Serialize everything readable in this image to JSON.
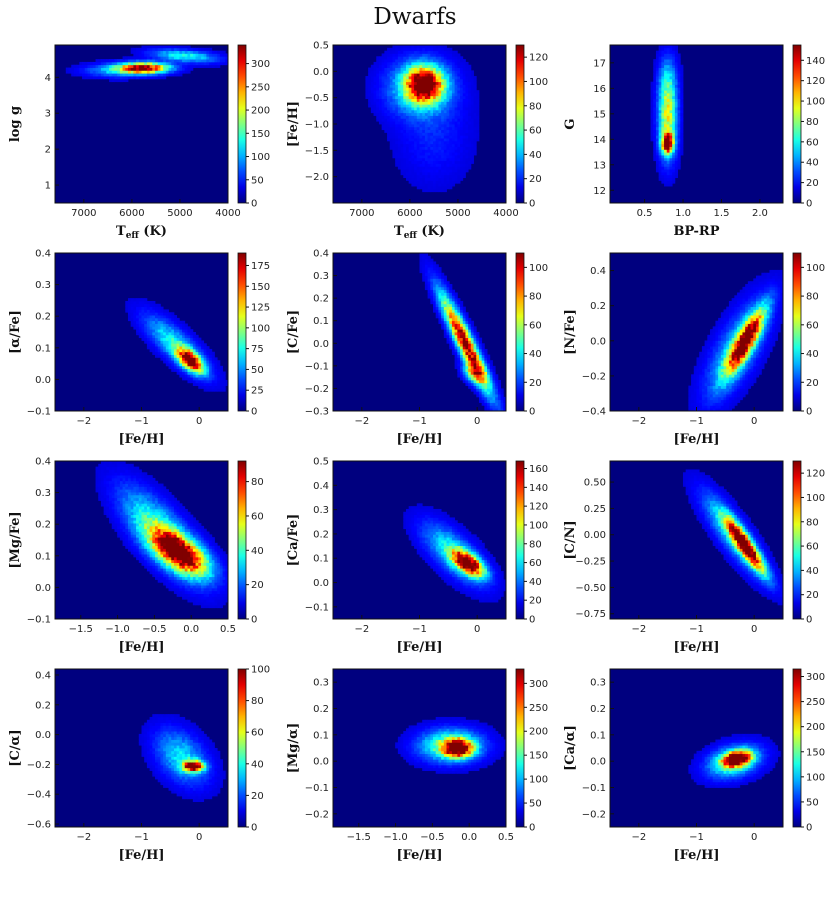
{
  "title": "Dwarfs",
  "chart_data": [
    {
      "type": "heatmap",
      "xlabel": "T_eff  (K)",
      "ylabel": "log g",
      "xlim": [
        7600,
        4000
      ],
      "ylim": [
        0.5,
        4.9
      ],
      "xticks": [
        "7000",
        "6000",
        "5000",
        "4000"
      ],
      "xtick_values": [
        7000,
        6000,
        5000,
        4000
      ],
      "yticks": [
        "1",
        "2",
        "3",
        "4"
      ],
      "ytick_values": [
        1,
        2,
        3,
        4
      ],
      "cbar_max": 340,
      "cbar_ticks": [
        0,
        50,
        100,
        150,
        200,
        250,
        300
      ],
      "blobs": [
        {
          "x": 5750,
          "y": 4.27,
          "sx": 350,
          "sy": 0.1,
          "rho": 0.0,
          "amp": 1.0
        },
        {
          "x": 4900,
          "y": 4.6,
          "sx": 450,
          "sy": 0.12,
          "rho": 0.4,
          "amp": 0.35
        },
        {
          "x": 6300,
          "y": 4.2,
          "sx": 450,
          "sy": 0.12,
          "rho": 0.0,
          "amp": 0.25
        }
      ]
    },
    {
      "type": "heatmap",
      "xlabel": "T_eff  (K)",
      "ylabel": "[Fe/H]",
      "xlim": [
        7600,
        4000
      ],
      "ylim": [
        -2.5,
        0.5
      ],
      "xticks": [
        "7000",
        "6000",
        "5000",
        "4000"
      ],
      "xtick_values": [
        7000,
        6000,
        5000,
        4000
      ],
      "yticks": [
        "−2.0",
        "−1.5",
        "−1.0",
        "−0.5",
        "0.0",
        "0.5"
      ],
      "ytick_values": [
        -2.0,
        -1.5,
        -1.0,
        -0.5,
        0.0,
        0.5
      ],
      "cbar_max": 130,
      "cbar_ticks": [
        0,
        20,
        40,
        60,
        80,
        100,
        120
      ],
      "blobs": [
        {
          "x": 5700,
          "y": -0.25,
          "sx": 250,
          "sy": 0.22,
          "rho": 0.0,
          "amp": 1.0
        },
        {
          "x": 5800,
          "y": -0.3,
          "sx": 450,
          "sy": 0.35,
          "rho": 0.0,
          "amp": 0.35
        },
        {
          "x": 5500,
          "y": -1.2,
          "sx": 500,
          "sy": 0.6,
          "rho": 0.0,
          "amp": 0.08
        }
      ]
    },
    {
      "type": "heatmap",
      "xlabel": "BP-RP",
      "ylabel": "G",
      "xlim": [
        0.05,
        2.3
      ],
      "ylim": [
        11.5,
        17.7
      ],
      "xticks": [
        "0.5",
        "1.0",
        "1.5",
        "2.0"
      ],
      "xtick_values": [
        0.5,
        1.0,
        1.5,
        2.0
      ],
      "yticks": [
        "12",
        "13",
        "14",
        "15",
        "16",
        "17"
      ],
      "ytick_values": [
        12,
        13,
        14,
        15,
        16,
        17
      ],
      "cbar_max": 155,
      "cbar_ticks": [
        0,
        20,
        40,
        60,
        80,
        100,
        120,
        140
      ],
      "blobs": [
        {
          "x": 0.8,
          "y": 13.85,
          "sx": 0.05,
          "sy": 0.25,
          "rho": 0.0,
          "amp": 1.0
        },
        {
          "x": 0.8,
          "y": 14.8,
          "sx": 0.08,
          "sy": 1.0,
          "rho": 0.0,
          "amp": 0.55
        },
        {
          "x": 0.8,
          "y": 16.3,
          "sx": 0.08,
          "sy": 0.7,
          "rho": 0.0,
          "amp": 0.2
        }
      ]
    },
    {
      "type": "heatmap",
      "xlabel": "[Fe/H]",
      "ylabel": "[α/Fe]",
      "xlim": [
        -2.5,
        0.5
      ],
      "ylim": [
        -0.1,
        0.4
      ],
      "xticks": [
        "−2",
        "−1",
        "0"
      ],
      "xtick_values": [
        -2,
        -1,
        0
      ],
      "yticks": [
        "−0.1",
        "0.0",
        "0.1",
        "0.2",
        "0.3",
        "0.4"
      ],
      "ytick_values": [
        -0.1,
        0.0,
        0.1,
        0.2,
        0.3,
        0.4
      ],
      "cbar_max": 190,
      "cbar_ticks": [
        0,
        25,
        50,
        75,
        100,
        125,
        150,
        175
      ],
      "blobs": [
        {
          "x": -0.15,
          "y": 0.06,
          "sx": 0.15,
          "sy": 0.025,
          "rho": -0.6,
          "amp": 1.0
        },
        {
          "x": -0.4,
          "y": 0.11,
          "sx": 0.35,
          "sy": 0.06,
          "rho": -0.8,
          "amp": 0.35
        }
      ]
    },
    {
      "type": "heatmap",
      "xlabel": "[Fe/H]",
      "ylabel": "[C/Fe]",
      "xlim": [
        -2.5,
        0.5
      ],
      "ylim": [
        -0.3,
        0.4
      ],
      "xticks": [
        "−2",
        "−1",
        "0"
      ],
      "xtick_values": [
        -2,
        -1,
        0
      ],
      "yticks": [
        "−0.3",
        "−0.2",
        "−0.1",
        "0.0",
        "0.1",
        "0.2",
        "0.3",
        "0.4"
      ],
      "ytick_values": [
        -0.3,
        -0.2,
        -0.1,
        0.0,
        0.1,
        0.2,
        0.3,
        0.4
      ],
      "cbar_max": 110,
      "cbar_ticks": [
        0,
        20,
        40,
        60,
        80,
        100
      ],
      "blobs": [
        {
          "x": -0.2,
          "y": 0.0,
          "sx": 0.28,
          "sy": 0.14,
          "rho": -0.93,
          "amp": 1.0
        },
        {
          "x": -0.05,
          "y": -0.13,
          "sx": 0.12,
          "sy": 0.03,
          "rho": -0.3,
          "amp": 0.5
        }
      ]
    },
    {
      "type": "heatmap",
      "xlabel": "[Fe/H]",
      "ylabel": "[N/Fe]",
      "xlim": [
        -2.5,
        0.5
      ],
      "ylim": [
        -0.4,
        0.5
      ],
      "xticks": [
        "−2",
        "−1",
        "0"
      ],
      "xtick_values": [
        -2,
        -1,
        0
      ],
      "yticks": [
        "−0.4",
        "−0.2",
        "0.0",
        "0.2",
        "0.4"
      ],
      "ytick_values": [
        -0.4,
        -0.2,
        0.0,
        0.2,
        0.4
      ],
      "cbar_max": 110,
      "cbar_ticks": [
        0,
        20,
        40,
        60,
        80,
        100
      ],
      "blobs": [
        {
          "x": -0.15,
          "y": 0.0,
          "sx": 0.22,
          "sy": 0.12,
          "rho": 0.85,
          "amp": 1.0
        },
        {
          "x": -0.3,
          "y": -0.05,
          "sx": 0.35,
          "sy": 0.18,
          "rho": 0.7,
          "amp": 0.3
        }
      ]
    },
    {
      "type": "heatmap",
      "xlabel": "[Fe/H]",
      "ylabel": "[Mg/Fe]",
      "xlim": [
        -1.85,
        0.5
      ],
      "ylim": [
        -0.1,
        0.4
      ],
      "xticks": [
        "−1.5",
        "−1.0",
        "−0.5",
        "0.0",
        "0.5"
      ],
      "xtick_values": [
        -1.5,
        -1.0,
        -0.5,
        0.0,
        0.5
      ],
      "yticks": [
        "−0.1",
        "0.0",
        "0.1",
        "0.2",
        "0.3",
        "0.4"
      ],
      "ytick_values": [
        -0.1,
        0.0,
        0.1,
        0.2,
        0.3,
        0.4
      ],
      "cbar_max": 92,
      "cbar_ticks": [
        0,
        20,
        40,
        60,
        80
      ],
      "blobs": [
        {
          "x": -0.15,
          "y": 0.11,
          "sx": 0.25,
          "sy": 0.045,
          "rho": -0.6,
          "amp": 1.0
        },
        {
          "x": -0.4,
          "y": 0.17,
          "sx": 0.35,
          "sy": 0.09,
          "rho": -0.75,
          "amp": 0.45
        }
      ]
    },
    {
      "type": "heatmap",
      "xlabel": "[Fe/H]",
      "ylabel": "[Ca/Fe]",
      "xlim": [
        -2.5,
        0.5
      ],
      "ylim": [
        -0.15,
        0.5
      ],
      "xticks": [
        "−2",
        "−1",
        "0"
      ],
      "xtick_values": [
        -2,
        -1,
        0
      ],
      "yticks": [
        "−0.1",
        "0.0",
        "0.1",
        "0.2",
        "0.3",
        "0.4",
        "0.5"
      ],
      "ytick_values": [
        -0.1,
        0.0,
        0.1,
        0.2,
        0.3,
        0.4,
        0.5
      ],
      "cbar_max": 168,
      "cbar_ticks": [
        0,
        20,
        40,
        60,
        80,
        100,
        120,
        140,
        160
      ],
      "blobs": [
        {
          "x": -0.15,
          "y": 0.08,
          "sx": 0.18,
          "sy": 0.035,
          "rho": -0.6,
          "amp": 1.0
        },
        {
          "x": -0.4,
          "y": 0.12,
          "sx": 0.35,
          "sy": 0.08,
          "rho": -0.7,
          "amp": 0.35
        }
      ]
    },
    {
      "type": "heatmap",
      "xlabel": "[Fe/H]",
      "ylabel": "[C/N]",
      "xlim": [
        -2.5,
        0.5
      ],
      "ylim": [
        -0.8,
        0.7
      ],
      "xticks": [
        "−2",
        "−1",
        "0"
      ],
      "xtick_values": [
        -2,
        -1,
        0
      ],
      "yticks": [
        "−0.75",
        "−0.50",
        "−0.25",
        "0.00",
        "0.25",
        "0.50"
      ],
      "ytick_values": [
        -0.75,
        -0.5,
        -0.25,
        0.0,
        0.25,
        0.5
      ],
      "cbar_max": 130,
      "cbar_ticks": [
        0,
        20,
        40,
        60,
        80,
        100,
        120
      ],
      "blobs": [
        {
          "x": -0.15,
          "y": -0.1,
          "sx": 0.22,
          "sy": 0.17,
          "rho": -0.9,
          "amp": 1.0
        },
        {
          "x": -0.35,
          "y": 0.0,
          "sx": 0.35,
          "sy": 0.25,
          "rho": -0.85,
          "amp": 0.35
        }
      ]
    },
    {
      "type": "heatmap",
      "xlabel": "[Fe/H]",
      "ylabel": "[C/α]",
      "xlim": [
        -2.5,
        0.5
      ],
      "ylim": [
        -0.62,
        0.44
      ],
      "xticks": [
        "−2",
        "−1",
        "0"
      ],
      "xtick_values": [
        -2,
        -1,
        0
      ],
      "yticks": [
        "−0.6",
        "−0.4",
        "−0.2",
        "0.0",
        "0.2",
        "0.4"
      ],
      "ytick_values": [
        -0.6,
        -0.4,
        -0.2,
        0.0,
        0.2,
        0.4
      ],
      "cbar_max": 100,
      "cbar_ticks": [
        0,
        20,
        40,
        60,
        80,
        100
      ],
      "blobs": [
        {
          "x": -0.1,
          "y": -0.21,
          "sx": 0.12,
          "sy": 0.025,
          "rho": 0.0,
          "amp": 1.0
        },
        {
          "x": -0.3,
          "y": -0.15,
          "sx": 0.3,
          "sy": 0.12,
          "rho": -0.4,
          "amp": 0.3
        }
      ]
    },
    {
      "type": "heatmap",
      "xlabel": "[Fe/H]",
      "ylabel": "[Mg/α]",
      "xlim": [
        -1.85,
        0.5
      ],
      "ylim": [
        -0.25,
        0.35
      ],
      "xticks": [
        "−1.5",
        "−1.0",
        "−0.5",
        "0.0",
        "0.5"
      ],
      "xtick_values": [
        -1.5,
        -1.0,
        -0.5,
        0.0,
        0.5
      ],
      "yticks": [
        "−0.2",
        "−0.1",
        "0.0",
        "0.1",
        "0.2",
        "0.3"
      ],
      "ytick_values": [
        -0.2,
        -0.1,
        0.0,
        0.1,
        0.2,
        0.3
      ],
      "cbar_max": 330,
      "cbar_ticks": [
        0,
        50,
        100,
        150,
        200,
        250,
        300
      ],
      "blobs": [
        {
          "x": -0.15,
          "y": 0.05,
          "sx": 0.13,
          "sy": 0.022,
          "rho": 0.0,
          "amp": 1.0
        },
        {
          "x": -0.25,
          "y": 0.06,
          "sx": 0.28,
          "sy": 0.04,
          "rho": 0.0,
          "amp": 0.5
        }
      ]
    },
    {
      "type": "heatmap",
      "xlabel": "[Fe/H]",
      "ylabel": "[Ca/α]",
      "xlim": [
        -2.5,
        0.5
      ],
      "ylim": [
        -0.25,
        0.35
      ],
      "xticks": [
        "−2",
        "−1",
        "0"
      ],
      "xtick_values": [
        -2,
        -1,
        0
      ],
      "yticks": [
        "−0.2",
        "−0.1",
        "0.0",
        "0.1",
        "0.2",
        "0.3"
      ],
      "ytick_values": [
        -0.2,
        -0.1,
        0.0,
        0.1,
        0.2,
        0.3
      ],
      "cbar_max": 315,
      "cbar_ticks": [
        0,
        50,
        100,
        150,
        200,
        250,
        300
      ],
      "blobs": [
        {
          "x": -0.3,
          "y": 0.01,
          "sx": 0.16,
          "sy": 0.02,
          "rho": 0.3,
          "amp": 1.0
        },
        {
          "x": -0.35,
          "y": 0.0,
          "sx": 0.3,
          "sy": 0.04,
          "rho": 0.3,
          "amp": 0.45
        }
      ]
    }
  ]
}
